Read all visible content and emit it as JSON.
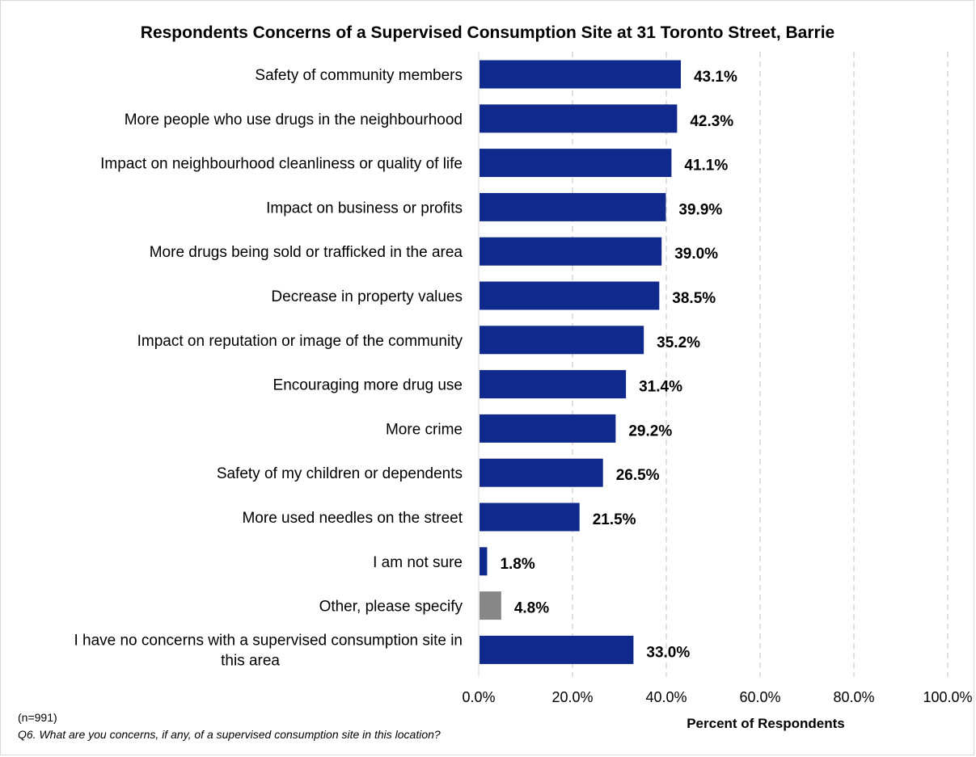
{
  "chart_data": {
    "type": "bar",
    "orientation": "horizontal",
    "title": "Respondents Concerns of a Supervised Consumption Site at 31 Toronto Street, Barrie",
    "xlabel": "Percent of Respondents",
    "ylabel": "",
    "xlim": [
      0,
      100
    ],
    "x_ticks": [
      "0.0%",
      "20.0%",
      "40.0%",
      "60.0%",
      "80.0%",
      "100.0%"
    ],
    "grid": "vertical dashed",
    "categories": [
      "Safety of community members",
      "More people who use drugs in the neighbourhood",
      "Impact on neighbourhood cleanliness or quality of life",
      "Impact on business or profits",
      "More drugs being sold or trafficked in the area",
      "Decrease in property values",
      "Impact on reputation or image of the community",
      "Encouraging more drug use",
      "More crime",
      "Safety of my children or dependents",
      "More used needles on the street",
      "I am not sure",
      "Other, please specify",
      "I have no concerns with a supervised consumption site in this area"
    ],
    "values": [
      43.1,
      42.3,
      41.1,
      39.9,
      39.0,
      38.5,
      35.2,
      31.4,
      29.2,
      26.5,
      21.5,
      1.8,
      4.8,
      33.0
    ],
    "value_labels": [
      "43.1%",
      "42.3%",
      "41.1%",
      "39.9%",
      "39.0%",
      "38.5%",
      "35.2%",
      "31.4%",
      "29.2%",
      "26.5%",
      "21.5%",
      "1.8%",
      "4.8%",
      "33.0%"
    ],
    "bar_colors": [
      "#0f2a8c",
      "#0f2a8c",
      "#0f2a8c",
      "#0f2a8c",
      "#0f2a8c",
      "#0f2a8c",
      "#0f2a8c",
      "#0f2a8c",
      "#0f2a8c",
      "#0f2a8c",
      "#0f2a8c",
      "#0f2a8c",
      "#878787",
      "#0f2a8c"
    ]
  },
  "notes": {
    "sample_size": "(n=991)",
    "question": "Q6. What are you concerns, if any, of a supervised consumption site in this location?"
  }
}
